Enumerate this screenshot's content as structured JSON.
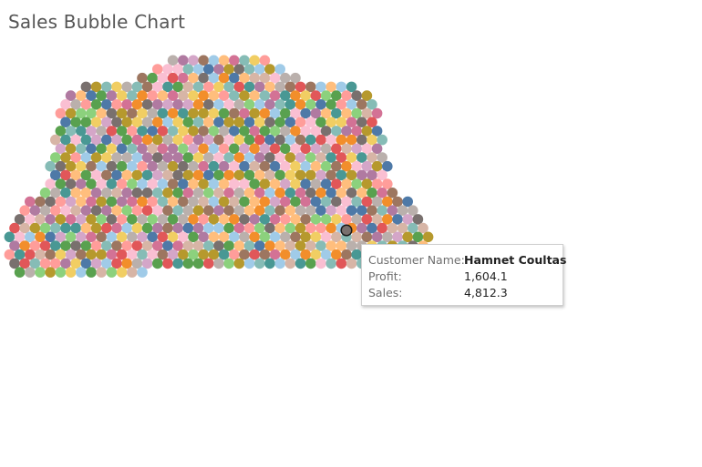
{
  "title": "Sales Bubble Chart",
  "tooltip": {
    "customer_label": "Customer Name:",
    "customer_value": "Hamnet Coultas",
    "profit_label": "Profit:",
    "profit_value": "1,604.1",
    "sales_label": "Sales:",
    "sales_value": "4,812.3"
  },
  "chart_data": {
    "type": "scatter",
    "subtype": "packed-bubble",
    "title": "Sales Bubble Chart",
    "mark_count": 793,
    "highlighted": {
      "customer_name": "Hamnet Coultas",
      "profit": 1604.1,
      "sales": 4812.3
    },
    "palette": [
      "#4e79a7",
      "#a0cbe8",
      "#f28e2b",
      "#ffbe7d",
      "#59a14f",
      "#8cd17d",
      "#b6992d",
      "#f1ce63",
      "#499894",
      "#86bcb6",
      "#e15759",
      "#ff9d9a",
      "#79706e",
      "#bab0ac",
      "#d37295",
      "#fabfd2",
      "#b07aa1",
      "#d4a6c8",
      "#9d7660",
      "#d7b5a6"
    ]
  }
}
